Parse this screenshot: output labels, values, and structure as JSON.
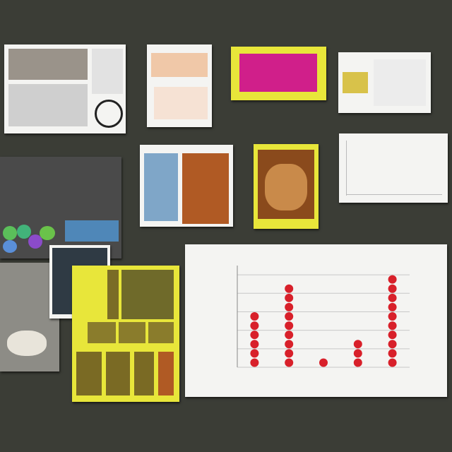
{
  "scene": {
    "description_free": true,
    "colors": {
      "asphalt": "#3b3d36",
      "paper": "#f4f4f2",
      "highlight_yellow": "#e8e63a",
      "magenta": "#d01f8a",
      "dot_red": "#d8202a",
      "grid": "#c8c8c8"
    }
  },
  "chart_data": {
    "type": "scatter",
    "title": "",
    "xlabel": "",
    "ylabel": "",
    "columns": [
      {
        "count": 6
      },
      {
        "count": 9
      },
      {
        "count": 1
      },
      {
        "count": 3
      },
      {
        "count": 10
      }
    ],
    "ylim": [
      0,
      11
    ],
    "grid": true
  }
}
